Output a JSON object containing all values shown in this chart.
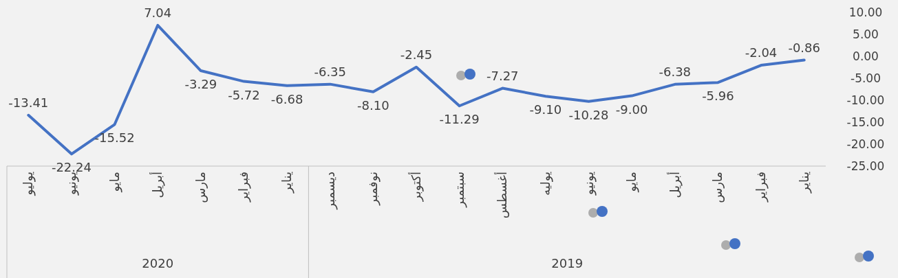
{
  "chart_data": {
    "type": "line",
    "categories": [
      "يوليو",
      "يونيو",
      "مايو",
      "أبريل",
      "مارس",
      "فبراير",
      "يناير",
      "ديسمبر",
      "نوفمبر",
      "أكتوبر",
      "سبتمبر",
      "أغسطس",
      "يوليه",
      "يونيو",
      "مايو",
      "أبريل",
      "مارس",
      "فبراير",
      "يناير"
    ],
    "series": [
      {
        "color": "#4472c4",
        "values": [
          -13.41,
          -22.24,
          -15.52,
          7.04,
          -3.29,
          -5.72,
          -6.68,
          -6.35,
          -8.1,
          -2.45,
          -11.29,
          -7.27,
          -9.1,
          -10.28,
          -9.0,
          -6.38,
          -5.96,
          -2.04,
          -0.86
        ],
        "value_labels": [
          "-13.41",
          "-22.24",
          "-15.52",
          "7.04",
          "-3.29",
          "-5.72",
          "-6.68",
          "-6.35",
          "-8.10",
          "-2.45",
          "-11.29",
          "-7.27",
          "-9.10",
          "-10.28",
          "-9.00",
          "-6.38",
          "-5.96",
          "-2.04",
          "-0.86"
        ]
      }
    ],
    "ylim": [
      -25,
      10
    ],
    "yticks": [
      {
        "value": 10,
        "label": "10.00"
      },
      {
        "value": 5,
        "label": "5.00"
      },
      {
        "value": 0,
        "label": "0.00"
      },
      {
        "value": -5,
        "label": "-5.00"
      },
      {
        "value": -10,
        "label": "-10.00"
      },
      {
        "value": -15,
        "label": "-15.00"
      },
      {
        "value": -20,
        "label": "-20.00"
      },
      {
        "value": -25,
        "label": "-25.00"
      }
    ],
    "annotations": [
      "2020",
      "2019"
    ],
    "grid": false,
    "marker": "none",
    "line_style": "solid"
  }
}
